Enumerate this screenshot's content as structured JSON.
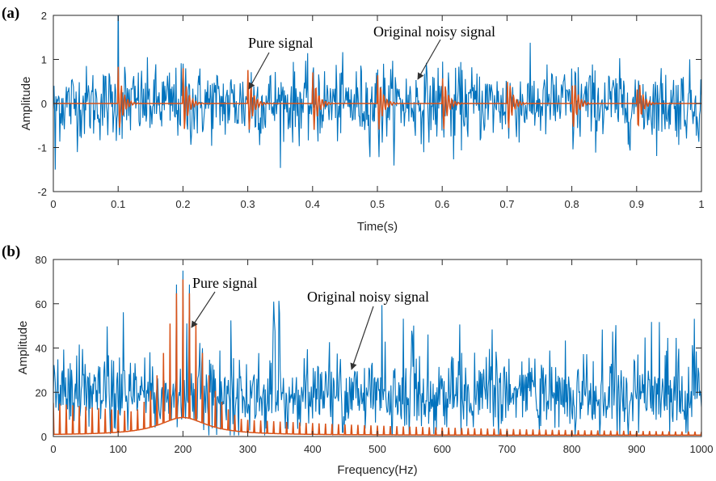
{
  "chart_data": [
    {
      "panel_label": "(a)",
      "type": "line",
      "title": "",
      "xlabel": "Time(s)",
      "ylabel": "Amplitude",
      "xlim": [
        0,
        1
      ],
      "ylim": [
        -2,
        2
      ],
      "xticks": [
        "0",
        "0.1",
        "0.2",
        "0.3",
        "0.4",
        "0.5",
        "0.6",
        "0.7",
        "0.8",
        "0.9",
        "1"
      ],
      "yticks": [
        "-2",
        "-1",
        "0",
        "1",
        "2"
      ],
      "grid": false,
      "series": [
        {
          "name": "Original noisy signal",
          "color": "#0072BD",
          "description": "Gaussian-like noise, std ~0.4, range about -1.5 to 2, superimposed on pure signal"
        },
        {
          "name": "Pure signal",
          "color": "#D95319",
          "description": "Decaying oscillatory impulses every 0.1 s starting at 0.1 s, peak amplitude ~0.85, decaying within ~0.03 s",
          "impulse_times": [
            0.1,
            0.2,
            0.3,
            0.4,
            0.5,
            0.6,
            0.7,
            0.8,
            0.9
          ],
          "peak_amplitude": 0.85
        }
      ],
      "annotations": [
        {
          "text": "Pure signal",
          "points_to": [
            0.3,
            0.2
          ]
        },
        {
          "text": "Original noisy signal",
          "points_to": [
            0.56,
            0.3
          ]
        }
      ]
    },
    {
      "panel_label": "(b)",
      "type": "line",
      "title": "",
      "xlabel": "Frequency(Hz)",
      "ylabel": "Amplitude",
      "xlim": [
        0,
        1000
      ],
      "ylim": [
        0,
        80
      ],
      "xticks": [
        "0",
        "100",
        "200",
        "300",
        "400",
        "500",
        "600",
        "700",
        "800",
        "900",
        "1000"
      ],
      "yticks": [
        "0",
        "20",
        "40",
        "60",
        "80"
      ],
      "grid": false,
      "series": [
        {
          "name": "Original noisy signal",
          "color": "#0072BD",
          "description": "Noisy spectrum fluctuating mostly 5-40, mean ~20, peaks ~75 near 190-210 Hz"
        },
        {
          "name": "Pure signal",
          "color": "#D95319",
          "description": "Line spectrum at 10 Hz harmonics with resonance envelope centered at 200 Hz",
          "harmonic_spacing_hz": 10,
          "peak_frequency_hz": 200,
          "peak_amplitude": 71,
          "baseline_at_peak": 8
        }
      ],
      "annotations": [
        {
          "text": "Pure signal",
          "points_to": [
            210,
            50
          ]
        },
        {
          "text": "Original noisy signal",
          "points_to": [
            460,
            30
          ]
        }
      ]
    }
  ]
}
